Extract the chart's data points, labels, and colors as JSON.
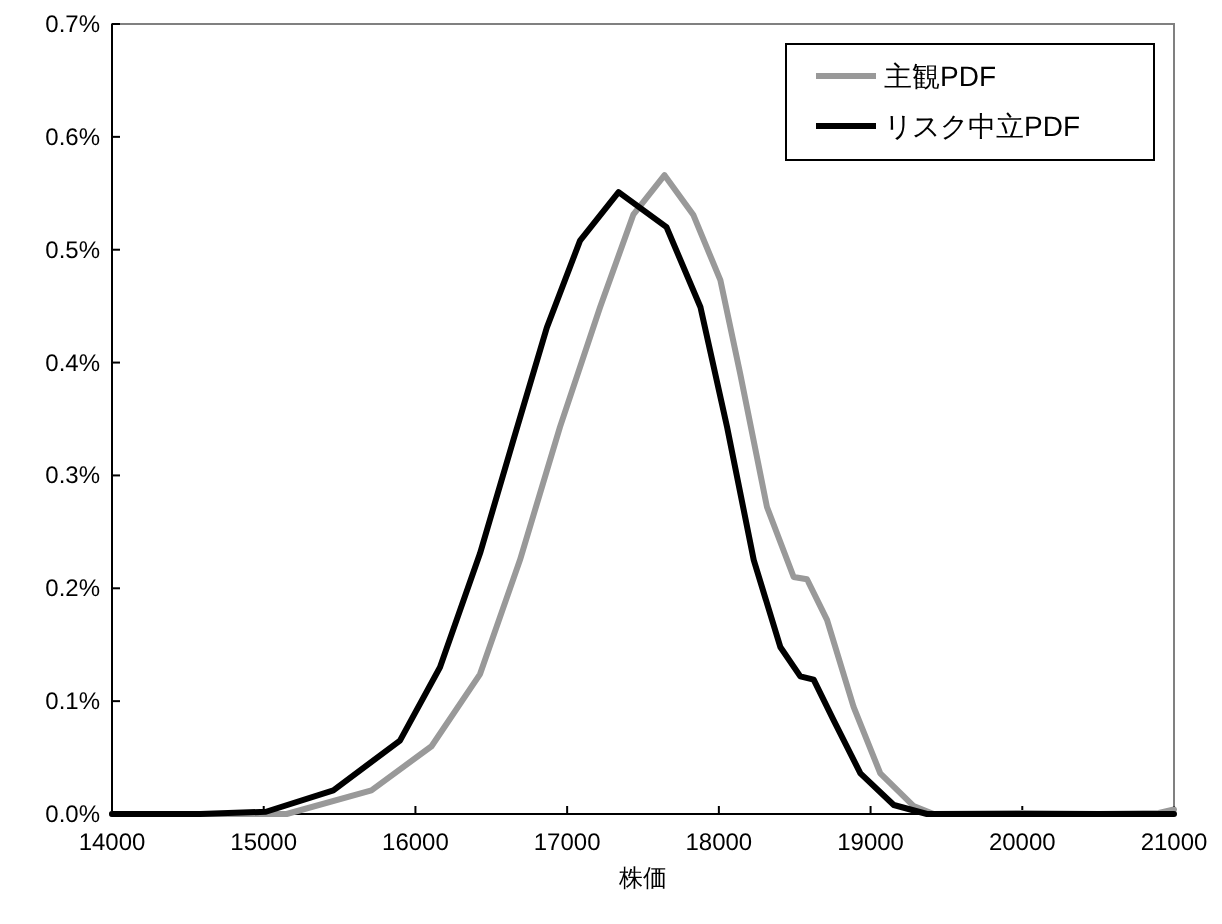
{
  "chart_data": {
    "type": "line",
    "xlabel": "株価",
    "xlim": [
      14000,
      21000
    ],
    "xticks": [
      14000,
      15000,
      16000,
      17000,
      18000,
      19000,
      20000,
      21000
    ],
    "ylim": [
      0,
      0.7
    ],
    "yticks": [
      {
        "value": 0,
        "label": "0.0%"
      },
      {
        "value": 0.1,
        "label": "0.1%"
      },
      {
        "value": 0.2,
        "label": "0.2%"
      },
      {
        "value": 0.3,
        "label": "0.3%"
      },
      {
        "value": 0.4,
        "label": "0.4%"
      },
      {
        "value": 0.5,
        "label": "0.5%"
      },
      {
        "value": 0.6,
        "label": "0.6%"
      },
      {
        "value": 0.7,
        "label": "0.7%"
      }
    ],
    "legend": "top right",
    "grid": false,
    "marker": "none",
    "line_style": "solid",
    "series": [
      {
        "name": "主観PDF",
        "color": "#999999",
        "x": [
          14000,
          15151,
          15710,
          16106,
          16426,
          16689,
          16953,
          17217,
          17436,
          17642,
          17831,
          18010,
          18141,
          18317,
          18493,
          18581,
          18713,
          18888,
          19064,
          19284,
          19416,
          20000,
          20500,
          20900,
          21000
        ],
        "values": [
          0,
          0,
          0.021,
          0.06,
          0.124,
          0.225,
          0.343,
          0.449,
          0.531,
          0.566,
          0.531,
          0.473,
          0.39,
          0.272,
          0.21,
          0.208,
          0.172,
          0.095,
          0.036,
          0.007,
          0,
          0.001,
          0,
          0.001,
          0.004
        ]
      },
      {
        "name": "リスク中立PDF",
        "color": "#000000",
        "x": [
          14000,
          14580,
          15015,
          15459,
          15898,
          16162,
          16426,
          16645,
          16866,
          17085,
          17339,
          17655,
          17879,
          18054,
          18230,
          18405,
          18537,
          18625,
          18757,
          18933,
          19153,
          19372,
          21000
        ],
        "values": [
          0,
          0,
          0.002,
          0.021,
          0.065,
          0.13,
          0.231,
          0.331,
          0.431,
          0.508,
          0.551,
          0.52,
          0.449,
          0.343,
          0.225,
          0.148,
          0.122,
          0.119,
          0.083,
          0.036,
          0.008,
          0,
          0
        ]
      }
    ]
  }
}
